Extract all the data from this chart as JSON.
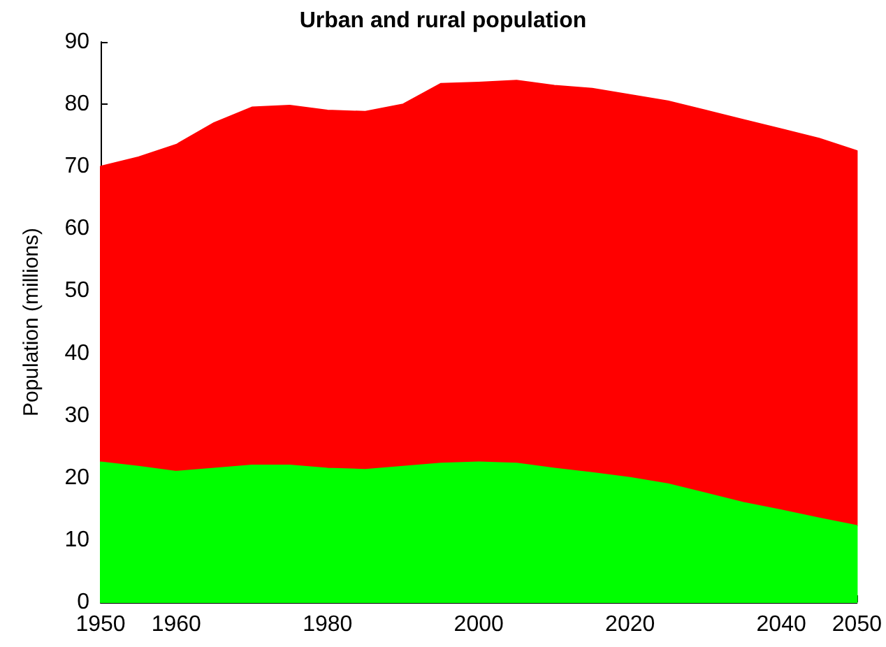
{
  "chart_data": {
    "type": "area",
    "stacked": true,
    "title": "Urban and rural population",
    "ylabel": "Population (millions)",
    "x": [
      1950,
      1955,
      1960,
      1965,
      1970,
      1975,
      1980,
      1985,
      1990,
      1995,
      2000,
      2005,
      2010,
      2015,
      2020,
      2025,
      2030,
      2035,
      2040,
      2045,
      2050
    ],
    "series": [
      {
        "color": "#00ff00",
        "values": [
          22.5,
          21.8,
          21,
          21.5,
          22,
          22,
          21.5,
          21.3,
          21.8,
          22.3,
          22.5,
          22.3,
          21.5,
          20.8,
          20,
          19,
          17.5,
          16,
          14.8,
          13.5,
          12.3
        ]
      },
      {
        "color": "#ff0000",
        "values": [
          47.5,
          49.7,
          52.5,
          55.5,
          57.5,
          57.8,
          57.5,
          57.5,
          58.2,
          61,
          61,
          61.5,
          61.5,
          61.7,
          61.5,
          61.5,
          61.5,
          61.5,
          61.2,
          61,
          60.2
        ]
      }
    ],
    "xlim": [
      1950,
      2050
    ],
    "xticks": [
      1950,
      1960,
      1980,
      2000,
      2020,
      2040,
      2050
    ],
    "ylim": [
      0,
      90
    ],
    "yticks": [
      0,
      10,
      20,
      30,
      40,
      50,
      60,
      70,
      80,
      90
    ],
    "grid": false
  }
}
